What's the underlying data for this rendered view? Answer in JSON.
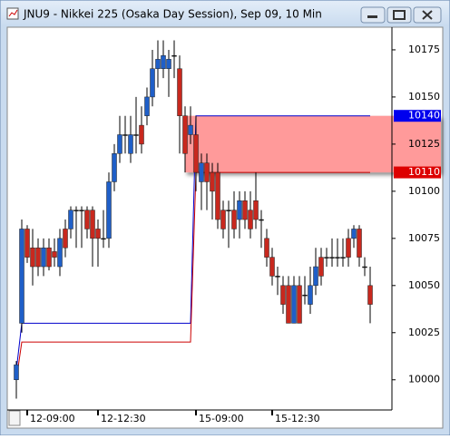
{
  "window_title": "JNU9 - Nikkei 225 (Osaka Day Session), Sep 09, 10 Min",
  "chart_data": {
    "type": "candlestick",
    "categories": [
      null,
      null,
      "12-09:00",
      null,
      null,
      null,
      null,
      null,
      null,
      null,
      null,
      null,
      null,
      null,
      null,
      "12-12:30",
      null,
      null,
      null,
      null,
      null,
      null,
      null,
      null,
      null,
      null,
      null,
      null,
      null,
      null,
      null,
      null,
      null,
      "15-09:00",
      null,
      null,
      null,
      null,
      null,
      null,
      null,
      null,
      null,
      null,
      null,
      null,
      null,
      "15-12:30",
      null,
      null,
      null,
      null,
      null,
      null,
      null,
      null,
      null,
      null,
      null,
      null,
      null,
      null,
      null,
      null,
      null,
      null
    ],
    "open": [
      10000,
      10030,
      10080,
      10070,
      10070,
      10060,
      10070,
      10068,
      10060,
      10080,
      10080,
      10090,
      10090,
      10090,
      10090,
      10080,
      10075,
      10075,
      10105,
      10120,
      10130,
      10120,
      10130,
      10135,
      10140,
      10150,
      10165,
      10165,
      10165,
      10172,
      10165,
      10140,
      10130,
      10130,
      10105,
      10115,
      10110,
      10110,
      10090,
      10090,
      10090,
      10085,
      10095,
      10090,
      10095,
      10085,
      10075,
      10065,
      10055,
      10050,
      10050,
      10030,
      10050,
      10045,
      10040,
      10050,
      10065,
      10065,
      10065,
      10065,
      10065,
      10075,
      10075,
      10080,
      10060,
      10050
    ],
    "high": [
      10010,
      10085,
      10082,
      10080,
      10075,
      10075,
      10075,
      10075,
      10080,
      10085,
      10092,
      10092,
      10092,
      10092,
      10092,
      10085,
      10090,
      10110,
      10125,
      10140,
      10140,
      10140,
      10150,
      10145,
      10155,
      10175,
      10180,
      10180,
      10175,
      10180,
      10172,
      10145,
      10145,
      10140,
      10120,
      10120,
      10115,
      10115,
      10095,
      10095,
      10100,
      10100,
      10100,
      10100,
      10110,
      10090,
      10080,
      10070,
      10060,
      10055,
      10055,
      10055,
      10055,
      10055,
      10060,
      10070,
      10070,
      10070,
      10075,
      10075,
      10075,
      10080,
      10082,
      10082,
      10065,
      10060
    ],
    "low": [
      9990,
      10025,
      10062,
      10050,
      10055,
      10055,
      10058,
      10060,
      10055,
      10065,
      10075,
      10070,
      10070,
      10075,
      10060,
      10060,
      10070,
      10070,
      10100,
      10115,
      10120,
      10115,
      10120,
      10120,
      10135,
      10145,
      10155,
      10160,
      10150,
      10160,
      10120,
      10110,
      10125,
      10100,
      10090,
      10090,
      10085,
      10080,
      10075,
      10070,
      10075,
      10075,
      10080,
      10075,
      10080,
      10070,
      10060,
      10050,
      10045,
      10035,
      10030,
      10030,
      10030,
      10040,
      10035,
      10045,
      10050,
      10060,
      10060,
      10060,
      10060,
      10060,
      10070,
      10060,
      10055,
      10030
    ],
    "close": [
      10008,
      10080,
      10065,
      10060,
      10060,
      10070,
      10060,
      10065,
      10075,
      10070,
      10090,
      10090,
      10090,
      10080,
      10075,
      10075,
      10075,
      10105,
      10120,
      10130,
      10130,
      10130,
      10130,
      10125,
      10150,
      10165,
      10170,
      10172,
      10170,
      10172,
      10140,
      10120,
      10135,
      10110,
      10115,
      10105,
      10100,
      10085,
      10080,
      10090,
      10080,
      10095,
      10085,
      10080,
      10085,
      10085,
      10065,
      10055,
      10055,
      10040,
      10030,
      10050,
      10030,
      10045,
      10050,
      10060,
      10055,
      10065,
      10065,
      10065,
      10065,
      10065,
      10080,
      10065,
      10060,
      10040
    ],
    "up_color": "#1f5fc8",
    "down_color": "#c8281e",
    "ylim": [
      9984,
      10187
    ],
    "yticks": [
      10000,
      10025,
      10050,
      10075,
      10100,
      10125,
      10150,
      10175
    ],
    "lines": [
      {
        "color": "#0000cc",
        "x": [
          0,
          1,
          32,
          33,
          65
        ],
        "values": [
          10005,
          10030,
          10030,
          10140,
          10140
        ]
      },
      {
        "color": "#cc0000",
        "x": [
          0,
          1,
          32,
          33,
          65
        ],
        "values": [
          10000,
          10020,
          10020,
          10110,
          10110
        ]
      }
    ],
    "zone": {
      "start": 31,
      "low": 10110,
      "high": 10140,
      "color": "#ff9a9a"
    },
    "price_tags": [
      {
        "value": 10140,
        "color": "#0000ee"
      },
      {
        "value": 10110,
        "color": "#dd0000"
      }
    ]
  }
}
